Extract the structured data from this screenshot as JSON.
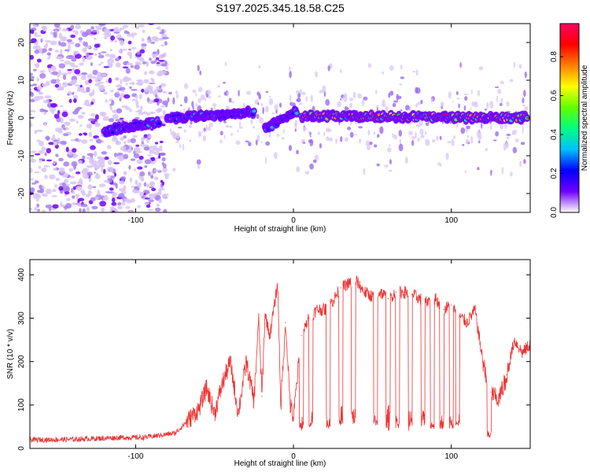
{
  "title": "S197.2025.345.18.58.C25",
  "chart_data": [
    {
      "type": "heatmap",
      "title": "S197.2025.345.18.58.C25",
      "xlabel": "Height of straight line (km)",
      "ylabel": "Frequency (Hz)",
      "xlim": [
        -167,
        150
      ],
      "ylim": [
        -25,
        25
      ],
      "x_ticks": [
        -100,
        0,
        100
      ],
      "y_ticks": [
        -20,
        -10,
        0,
        10,
        20
      ],
      "colorbar": {
        "label": "Normalized spectral amplitude",
        "range": [
          0,
          0.97
        ],
        "ticks": [
          0.0,
          0.2,
          0.4,
          0.6,
          0.8
        ],
        "tick_labels": [
          "0.0",
          "0.2",
          "0.4",
          "0.6",
          "0.8"
        ],
        "colors": [
          "#ffffff",
          "#7000ff",
          "#0000ff",
          "#00c0ff",
          "#00ff80",
          "#60ff00",
          "#ffff00",
          "#ff8000",
          "#ff0000",
          "#ff0060"
        ]
      },
      "ridge_segments": [
        {
          "x_start": -120,
          "x_end": -85,
          "freq_start": -3.5,
          "freq_end": -1.0,
          "amplitude": 0.35
        },
        {
          "x_start": -80,
          "x_end": -25,
          "freq_start": 0,
          "freq_end": 1.5,
          "amplitude": 0.3
        },
        {
          "x_start": -18,
          "x_end": 2,
          "freq_start": -3,
          "freq_end": 2,
          "amplitude": 0.3
        },
        {
          "x_start": 5,
          "x_end": 148,
          "freq_start": 0.5,
          "freq_end": 0,
          "amplitude": 0.8
        }
      ],
      "noise_region": {
        "x_start": -167,
        "x_end": -80,
        "freq_min": -25,
        "freq_max": 25
      }
    },
    {
      "type": "line",
      "xlabel": "Height of straight line (km)",
      "ylabel": "SNR (10 * v/v)",
      "xlim": [
        -167,
        150
      ],
      "ylim": [
        0,
        435
      ],
      "x_ticks": [
        -100,
        0,
        100
      ],
      "y_ticks": [
        0,
        100,
        200,
        300,
        400
      ],
      "color": "#ee3333",
      "series": [
        {
          "name": "SNR",
          "x": [
            -167,
            -150,
            -130,
            -110,
            -95,
            -85,
            -75,
            -68,
            -60,
            -55,
            -50,
            -45,
            -40,
            -35,
            -30,
            -25,
            -22,
            -20,
            -18,
            -15,
            -10,
            -8,
            -5,
            -2,
            0,
            5,
            10,
            15,
            20,
            25,
            30,
            35,
            40,
            45,
            50,
            55,
            60,
            65,
            70,
            75,
            80,
            85,
            90,
            95,
            100,
            105,
            110,
            115,
            120,
            125,
            130,
            135,
            140,
            145,
            150
          ],
          "values": [
            20,
            20,
            22,
            25,
            25,
            30,
            35,
            60,
            90,
            140,
            80,
            150,
            200,
            80,
            200,
            110,
            300,
            120,
            310,
            260,
            380,
            100,
            290,
            100,
            70,
            260,
            300,
            320,
            320,
            340,
            370,
            380,
            385,
            360,
            350,
            360,
            345,
            360,
            360,
            355,
            345,
            340,
            345,
            320,
            330,
            305,
            290,
            320,
            200,
            130,
            110,
            170,
            250,
            220,
            240
          ]
        }
      ],
      "dips": [
        {
          "x": 5,
          "value": 45
        },
        {
          "x": 11,
          "value": 55
        },
        {
          "x": 22,
          "value": 50
        },
        {
          "x": 30,
          "value": 60
        },
        {
          "x": 38,
          "value": 60
        },
        {
          "x": 52,
          "value": 50
        },
        {
          "x": 60,
          "value": 60
        },
        {
          "x": 66,
          "value": 50
        },
        {
          "x": 74,
          "value": 50
        },
        {
          "x": 82,
          "value": 55
        },
        {
          "x": 88,
          "value": 45
        },
        {
          "x": 94,
          "value": 50
        },
        {
          "x": 100,
          "value": 45
        },
        {
          "x": 104,
          "value": 50
        },
        {
          "x": 124,
          "value": 20
        },
        {
          "x": 134,
          "value": 140
        }
      ]
    }
  ]
}
